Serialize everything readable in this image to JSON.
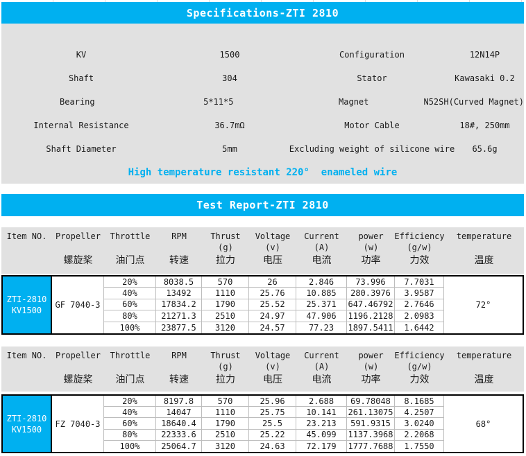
{
  "colors": {
    "accent": "#00B0F0",
    "panel": "#E1E1E1",
    "table_border": "#000000",
    "grid_line": "#bdbdbd"
  },
  "spec": {
    "title": "Specifications-ZTI 2810",
    "rows": [
      {
        "label1": "KV",
        "value1": "1500",
        "label2": "Configuration",
        "value2": "12N14P"
      },
      {
        "label1": "Shaft",
        "value1": "304",
        "label2": "Stator",
        "value2": "Kawasaki 0.2"
      },
      {
        "label1": "Bearing",
        "value1": "5*11*5",
        "label2": "Magnet",
        "value2": "N52SH(Curved Magnet)"
      },
      {
        "label1": "Internal Resistance",
        "value1": "36.7mΩ",
        "label2": "Motor Cable",
        "value2": "18#, 250mm"
      },
      {
        "label1": "Shaft Diameter",
        "value1": "5mm",
        "label2": "Excluding weight of silicone wire",
        "value2": "65.6g"
      }
    ],
    "note": "High temperature resistant 220°  enameled wire"
  },
  "report": {
    "title": "Test Report-ZTI 2810",
    "columns": [
      {
        "en": "Item NO.",
        "sub": "",
        "zh": ""
      },
      {
        "en": "Propeller",
        "sub": "",
        "zh": "螺旋桨"
      },
      {
        "en": "Throttle",
        "sub": "",
        "zh": "油门点"
      },
      {
        "en": "RPM",
        "sub": "",
        "zh": "转速"
      },
      {
        "en": "Thrust",
        "sub": "(g)",
        "zh": "拉力"
      },
      {
        "en": "Voltage",
        "sub": "(v)",
        "zh": "电压"
      },
      {
        "en": "Current",
        "sub": "(A)",
        "zh": "电流"
      },
      {
        "en": "power",
        "sub": "(w)",
        "zh": "功率"
      },
      {
        "en": "Efficiency",
        "sub": "(g/w)",
        "zh": "力效"
      },
      {
        "en": "temperature",
        "sub": "",
        "zh": "温度"
      }
    ],
    "blocks": [
      {
        "item_line1": "ZTI-2810",
        "item_line2": "KV1500",
        "propeller": "GF 7040-3",
        "temperature": "72°",
        "rows": [
          [
            "20%",
            "8038.5",
            "570",
            "26",
            "2.846",
            "73.996",
            "7.7031"
          ],
          [
            "40%",
            "13492",
            "1110",
            "25.76",
            "10.885",
            "280.3976",
            "3.9587"
          ],
          [
            "60%",
            "17834.2",
            "1790",
            "25.52",
            "25.371",
            "647.46792",
            "2.7646"
          ],
          [
            "80%",
            "21271.3",
            "2510",
            "24.97",
            "47.906",
            "1196.2128",
            "2.0983"
          ],
          [
            "100%",
            "23877.5",
            "3120",
            "24.57",
            "77.23",
            "1897.5411",
            "1.6442"
          ]
        ]
      },
      {
        "item_line1": "ZTI-2810",
        "item_line2": "KV1500",
        "propeller": "FZ 7040-3",
        "temperature": "68°",
        "rows": [
          [
            "20%",
            "8197.8",
            "570",
            "25.96",
            "2.688",
            "69.78048",
            "8.1685"
          ],
          [
            "40%",
            "14047",
            "1110",
            "25.75",
            "10.141",
            "261.13075",
            "4.2507"
          ],
          [
            "60%",
            "18640.4",
            "1790",
            "25.5",
            "23.213",
            "591.9315",
            "3.0240"
          ],
          [
            "80%",
            "22333.6",
            "2510",
            "25.22",
            "45.099",
            "1137.3968",
            "2.2068"
          ],
          [
            "100%",
            "25064.7",
            "3120",
            "24.63",
            "72.179",
            "1777.7688",
            "1.7550"
          ]
        ]
      }
    ]
  }
}
